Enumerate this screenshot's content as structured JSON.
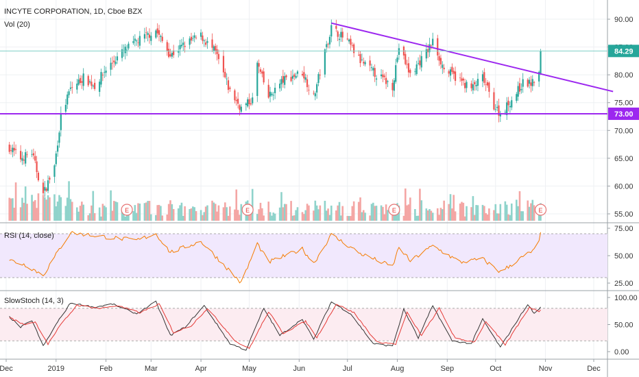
{
  "chart_data": [
    {
      "type": "candlestick",
      "title": "INCYTE CORPORATION, 1D, Cboe BZX",
      "volume_label": "Vol (20)",
      "y_ticks": [
        "90.00",
        "85.00",
        "80.00",
        "75.00",
        "70.00",
        "65.00",
        "60.00",
        "55.00"
      ],
      "ylim": [
        54,
        92
      ],
      "last_price": "84.29",
      "support_level": "73.00",
      "support_value": 73.0,
      "trendline": [
        {
          "x": "2019-06-21",
          "y": 89.3
        },
        {
          "x": "2019-12-13",
          "y": 77.0
        }
      ],
      "earnings_markers": [
        "E",
        "E",
        "E",
        "E"
      ],
      "earnings_dates": [
        "2019-02-14",
        "2019-04-30",
        "2019-07-30",
        "2019-10-29"
      ],
      "colors": {
        "up": "#26a69a",
        "down": "#ef5350",
        "volume_up": "#8fd3cb",
        "volume_down": "#f4a6a4",
        "lines": "#9c27ef"
      },
      "close_anchors": [
        {
          "x": "2018-12-01",
          "y": 67.5
        },
        {
          "x": "2018-12-10",
          "y": 65.0
        },
        {
          "x": "2018-12-17",
          "y": 66.0
        },
        {
          "x": "2018-12-24",
          "y": 58.5
        },
        {
          "x": "2018-12-31",
          "y": 63.5
        },
        {
          "x": "2019-01-04",
          "y": 72.5
        },
        {
          "x": "2019-01-10",
          "y": 77.5
        },
        {
          "x": "2019-01-18",
          "y": 79.5
        },
        {
          "x": "2019-01-25",
          "y": 78.0
        },
        {
          "x": "2019-02-01",
          "y": 81.0
        },
        {
          "x": "2019-02-11",
          "y": 84.0
        },
        {
          "x": "2019-02-20",
          "y": 86.0
        },
        {
          "x": "2019-03-04",
          "y": 88.0
        },
        {
          "x": "2019-03-13",
          "y": 83.5
        },
        {
          "x": "2019-03-22",
          "y": 85.5
        },
        {
          "x": "2019-04-01",
          "y": 87.0
        },
        {
          "x": "2019-04-10",
          "y": 84.0
        },
        {
          "x": "2019-04-19",
          "y": 77.0
        },
        {
          "x": "2019-04-26",
          "y": 74.0
        },
        {
          "x": "2019-05-03",
          "y": 75.5
        },
        {
          "x": "2019-05-06",
          "y": 82.0
        },
        {
          "x": "2019-05-13",
          "y": 76.0
        },
        {
          "x": "2019-05-22",
          "y": 79.0
        },
        {
          "x": "2019-06-03",
          "y": 80.5
        },
        {
          "x": "2019-06-10",
          "y": 76.0
        },
        {
          "x": "2019-06-17",
          "y": 84.0
        },
        {
          "x": "2019-06-21",
          "y": 88.5
        },
        {
          "x": "2019-07-01",
          "y": 86.0
        },
        {
          "x": "2019-07-09",
          "y": 82.5
        },
        {
          "x": "2019-07-19",
          "y": 80.0
        },
        {
          "x": "2019-07-29",
          "y": 78.0
        },
        {
          "x": "2019-08-02",
          "y": 85.0
        },
        {
          "x": "2019-08-09",
          "y": 80.0
        },
        {
          "x": "2019-08-19",
          "y": 84.0
        },
        {
          "x": "2019-08-23",
          "y": 86.0
        },
        {
          "x": "2019-08-30",
          "y": 81.0
        },
        {
          "x": "2019-09-09",
          "y": 79.0
        },
        {
          "x": "2019-09-16",
          "y": 77.5
        },
        {
          "x": "2019-09-23",
          "y": 79.5
        },
        {
          "x": "2019-09-30",
          "y": 74.5
        },
        {
          "x": "2019-10-04",
          "y": 73.0
        },
        {
          "x": "2019-10-11",
          "y": 75.5
        },
        {
          "x": "2019-10-18",
          "y": 78.5
        },
        {
          "x": "2019-10-24",
          "y": 78.5
        },
        {
          "x": "2019-10-25",
          "y": 79.0
        },
        {
          "x": "2019-10-28",
          "y": 80.2
        },
        {
          "x": "2019-10-29",
          "y": 84.29
        }
      ]
    },
    {
      "type": "line",
      "title": "RSI (14, close)",
      "y_ticks": [
        "75.00",
        "50.00",
        "25.00"
      ],
      "ylim": [
        20,
        77
      ],
      "band": [
        30,
        70
      ],
      "anchors": [
        {
          "x": "2018-12-01",
          "y": 47
        },
        {
          "x": "2018-12-14",
          "y": 41
        },
        {
          "x": "2018-12-24",
          "y": 32
        },
        {
          "x": "2019-01-04",
          "y": 58
        },
        {
          "x": "2019-01-10",
          "y": 71
        },
        {
          "x": "2019-02-01",
          "y": 67
        },
        {
          "x": "2019-02-20",
          "y": 64
        },
        {
          "x": "2019-03-04",
          "y": 70
        },
        {
          "x": "2019-03-13",
          "y": 53
        },
        {
          "x": "2019-04-01",
          "y": 63
        },
        {
          "x": "2019-04-19",
          "y": 36
        },
        {
          "x": "2019-04-26",
          "y": 25
        },
        {
          "x": "2019-05-06",
          "y": 61
        },
        {
          "x": "2019-05-13",
          "y": 44
        },
        {
          "x": "2019-06-03",
          "y": 56
        },
        {
          "x": "2019-06-10",
          "y": 43
        },
        {
          "x": "2019-06-21",
          "y": 69
        },
        {
          "x": "2019-07-09",
          "y": 52
        },
        {
          "x": "2019-07-29",
          "y": 40
        },
        {
          "x": "2019-08-02",
          "y": 58
        },
        {
          "x": "2019-08-09",
          "y": 45
        },
        {
          "x": "2019-08-23",
          "y": 59
        },
        {
          "x": "2019-09-09",
          "y": 44
        },
        {
          "x": "2019-09-23",
          "y": 47
        },
        {
          "x": "2019-10-04",
          "y": 35
        },
        {
          "x": "2019-10-18",
          "y": 49
        },
        {
          "x": "2019-10-25",
          "y": 55
        },
        {
          "x": "2019-10-28",
          "y": 62
        },
        {
          "x": "2019-10-29",
          "y": 71
        }
      ]
    },
    {
      "type": "line",
      "title": "SlowStoch (14, 3)",
      "y_ticks": [
        "100.00",
        "50.00",
        "0.00"
      ],
      "ylim": [
        -8,
        104
      ],
      "band": [
        20,
        80
      ],
      "series": [
        {
          "anchors": [
            {
              "x": "2018-12-01",
              "y": 70
            },
            {
              "x": "2018-12-10",
              "y": 45
            },
            {
              "x": "2018-12-17",
              "y": 58
            },
            {
              "x": "2018-12-24",
              "y": 10
            },
            {
              "x": "2019-01-02",
              "y": 55
            },
            {
              "x": "2019-01-10",
              "y": 90
            },
            {
              "x": "2019-01-25",
              "y": 82
            },
            {
              "x": "2019-02-05",
              "y": 88
            },
            {
              "x": "2019-02-20",
              "y": 70
            },
            {
              "x": "2019-03-04",
              "y": 92
            },
            {
              "x": "2019-03-13",
              "y": 30
            },
            {
              "x": "2019-03-22",
              "y": 45
            },
            {
              "x": "2019-04-03",
              "y": 85
            },
            {
              "x": "2019-04-19",
              "y": 15
            },
            {
              "x": "2019-04-29",
              "y": 3
            },
            {
              "x": "2019-05-10",
              "y": 80
            },
            {
              "x": "2019-05-20",
              "y": 30
            },
            {
              "x": "2019-06-03",
              "y": 60
            },
            {
              "x": "2019-06-10",
              "y": 22
            },
            {
              "x": "2019-06-21",
              "y": 92
            },
            {
              "x": "2019-07-03",
              "y": 70
            },
            {
              "x": "2019-07-17",
              "y": 15
            },
            {
              "x": "2019-07-29",
              "y": 10
            },
            {
              "x": "2019-08-05",
              "y": 78
            },
            {
              "x": "2019-08-14",
              "y": 25
            },
            {
              "x": "2019-08-23",
              "y": 85
            },
            {
              "x": "2019-09-04",
              "y": 20
            },
            {
              "x": "2019-09-16",
              "y": 15
            },
            {
              "x": "2019-09-23",
              "y": 60
            },
            {
              "x": "2019-10-04",
              "y": 8
            },
            {
              "x": "2019-10-21",
              "y": 88
            },
            {
              "x": "2019-10-25",
              "y": 70
            },
            {
              "x": "2019-10-29",
              "y": 82
            }
          ]
        },
        {
          "anchors": [
            {
              "x": "2018-12-01",
              "y": 66
            },
            {
              "x": "2018-12-12",
              "y": 50
            },
            {
              "x": "2018-12-19",
              "y": 55
            },
            {
              "x": "2018-12-27",
              "y": 14
            },
            {
              "x": "2019-01-04",
              "y": 50
            },
            {
              "x": "2019-01-14",
              "y": 86
            },
            {
              "x": "2019-01-28",
              "y": 80
            },
            {
              "x": "2019-02-08",
              "y": 85
            },
            {
              "x": "2019-02-22",
              "y": 72
            },
            {
              "x": "2019-03-06",
              "y": 88
            },
            {
              "x": "2019-03-15",
              "y": 35
            },
            {
              "x": "2019-03-26",
              "y": 48
            },
            {
              "x": "2019-04-05",
              "y": 80
            },
            {
              "x": "2019-04-23",
              "y": 18
            },
            {
              "x": "2019-05-01",
              "y": 6
            },
            {
              "x": "2019-05-13",
              "y": 74
            },
            {
              "x": "2019-05-22",
              "y": 34
            },
            {
              "x": "2019-06-05",
              "y": 56
            },
            {
              "x": "2019-06-12",
              "y": 26
            },
            {
              "x": "2019-06-24",
              "y": 88
            },
            {
              "x": "2019-07-05",
              "y": 72
            },
            {
              "x": "2019-07-19",
              "y": 18
            },
            {
              "x": "2019-07-31",
              "y": 14
            },
            {
              "x": "2019-08-07",
              "y": 72
            },
            {
              "x": "2019-08-16",
              "y": 30
            },
            {
              "x": "2019-08-27",
              "y": 80
            },
            {
              "x": "2019-09-06",
              "y": 24
            },
            {
              "x": "2019-09-18",
              "y": 18
            },
            {
              "x": "2019-09-25",
              "y": 56
            },
            {
              "x": "2019-10-07",
              "y": 12
            },
            {
              "x": "2019-10-22",
              "y": 82
            },
            {
              "x": "2019-10-28",
              "y": 74
            },
            {
              "x": "2019-10-29",
              "y": 78
            }
          ]
        }
      ]
    }
  ],
  "x_axis": {
    "ticks": [
      {
        "label": "Dec",
        "date": "2018-12-01"
      },
      {
        "label": "2019",
        "date": "2019-01-01"
      },
      {
        "label": "Feb",
        "date": "2019-02-01"
      },
      {
        "label": "Mar",
        "date": "2019-03-01"
      },
      {
        "label": "Apr",
        "date": "2019-04-01"
      },
      {
        "label": "May",
        "date": "2019-05-01"
      },
      {
        "label": "Jun",
        "date": "2019-06-01"
      },
      {
        "label": "Jul",
        "date": "2019-07-01"
      },
      {
        "label": "Aug",
        "date": "2019-08-01"
      },
      {
        "label": "Sep",
        "date": "2019-09-01"
      },
      {
        "label": "Oct",
        "date": "2019-10-01"
      },
      {
        "label": "Nov",
        "date": "2019-11-01"
      },
      {
        "label": "Dec",
        "date": "2019-12-01"
      }
    ]
  }
}
